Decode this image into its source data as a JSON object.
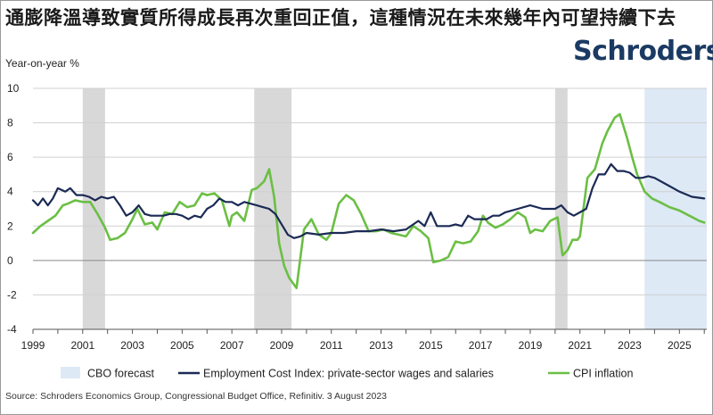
{
  "title": "通膨降溫導致實質所得成長再次重回正值，這種情況在未來幾年內可望持續下去",
  "logo": "Schroders",
  "source": "Source: Schroders Economics Group, Congressional Budget Office, Refinitiv. 3 August 2023",
  "colors": {
    "ect": "#1b2a55",
    "cpi": "#6bbf44",
    "forecast": "#dde9f5",
    "recession": "#d8d8d8",
    "grid": "#d0d0d0"
  },
  "chart_data": {
    "type": "line",
    "ylabel": "Year-on-year %",
    "ylim": [
      -4,
      10
    ],
    "yticks": [
      "-4",
      "-2",
      "0",
      "2",
      "4",
      "6",
      "8",
      "10"
    ],
    "xlim": [
      1999,
      2026.1
    ],
    "xticks": [
      "1999",
      "2001",
      "2003",
      "2005",
      "2007",
      "2009",
      "2011",
      "2013",
      "2015",
      "2017",
      "2019",
      "2021",
      "2023",
      "2025"
    ],
    "grid": "horizontal",
    "legend_position": "bottom",
    "shaded_recessions": [
      [
        2001.0,
        2001.9
      ],
      [
        2007.9,
        2009.4
      ],
      [
        2020.0,
        2020.5
      ]
    ],
    "forecast_region": [
      2023.6,
      2026.1
    ],
    "legend": [
      {
        "name": "CBO forecast",
        "kind": "area"
      },
      {
        "name": "Employment Cost Index: private-sector wages and salaries",
        "kind": "line",
        "series": 0
      },
      {
        "name": "CPI inflation",
        "kind": "line",
        "series": 1
      }
    ],
    "series": [
      {
        "name": "Employment Cost Index: private-sector wages and salaries",
        "x": [
          1999.0,
          1999.2,
          1999.4,
          1999.6,
          1999.8,
          2000.0,
          2000.3,
          2000.5,
          2000.75,
          2001.0,
          2001.25,
          2001.5,
          2001.75,
          2002.0,
          2002.25,
          2002.5,
          2002.75,
          2003.0,
          2003.25,
          2003.5,
          2003.75,
          2004.0,
          2004.25,
          2004.5,
          2004.75,
          2005.0,
          2005.25,
          2005.5,
          2005.75,
          2006.0,
          2006.25,
          2006.5,
          2006.75,
          2007.0,
          2007.25,
          2007.5,
          2007.75,
          2008.0,
          2008.25,
          2008.5,
          2008.75,
          2009.0,
          2009.25,
          2009.5,
          2009.75,
          2010.0,
          2010.5,
          2011.0,
          2011.5,
          2012.0,
          2012.5,
          2013.0,
          2013.5,
          2014.0,
          2014.5,
          2014.75,
          2015.0,
          2015.25,
          2015.5,
          2015.75,
          2016.0,
          2016.25,
          2016.5,
          2016.75,
          2017.0,
          2017.25,
          2017.5,
          2017.75,
          2018.0,
          2018.5,
          2019.0,
          2019.5,
          2020.0,
          2020.25,
          2020.5,
          2020.75,
          2021.0,
          2021.25,
          2021.5,
          2021.75,
          2022.0,
          2022.25,
          2022.5,
          2022.75,
          2023.0,
          2023.25,
          2023.5,
          2023.75,
          2024.0,
          2024.5,
          2025.0,
          2025.5,
          2026.0
        ],
        "values": [
          3.5,
          3.2,
          3.6,
          3.2,
          3.6,
          4.2,
          4.0,
          4.2,
          3.8,
          3.8,
          3.7,
          3.5,
          3.7,
          3.6,
          3.7,
          3.2,
          2.6,
          2.8,
          3.2,
          2.7,
          2.6,
          2.6,
          2.6,
          2.7,
          2.7,
          2.6,
          2.4,
          2.6,
          2.5,
          3.0,
          3.2,
          3.6,
          3.4,
          3.4,
          3.2,
          3.4,
          3.3,
          3.2,
          3.1,
          3.0,
          2.7,
          2.1,
          1.5,
          1.3,
          1.4,
          1.6,
          1.5,
          1.6,
          1.6,
          1.7,
          1.7,
          1.8,
          1.7,
          1.8,
          2.3,
          2.0,
          2.8,
          2.0,
          2.0,
          2.0,
          2.1,
          2.0,
          2.6,
          2.4,
          2.4,
          2.4,
          2.6,
          2.6,
          2.8,
          3.0,
          3.2,
          3.0,
          3.0,
          3.2,
          2.8,
          2.6,
          2.8,
          3.0,
          4.2,
          5.0,
          5.0,
          5.6,
          5.2,
          5.2,
          5.1,
          4.8,
          4.8,
          4.9,
          4.8,
          4.4,
          4.0,
          3.7,
          3.6
        ]
      },
      {
        "name": "CPI inflation",
        "x": [
          1999.0,
          1999.3,
          1999.6,
          1999.9,
          2000.2,
          2000.4,
          2000.7,
          2001.0,
          2001.3,
          2001.6,
          2001.9,
          2002.1,
          2002.4,
          2002.7,
          2003.0,
          2003.2,
          2003.5,
          2003.8,
          2004.0,
          2004.3,
          2004.6,
          2004.9,
          2005.2,
          2005.5,
          2005.8,
          2006.0,
          2006.3,
          2006.6,
          2006.9,
          2007.0,
          2007.2,
          2007.5,
          2007.8,
          2008.0,
          2008.3,
          2008.5,
          2008.7,
          2008.9,
          2009.1,
          2009.3,
          2009.6,
          2009.9,
          2010.2,
          2010.5,
          2010.8,
          2011.0,
          2011.3,
          2011.6,
          2011.9,
          2012.2,
          2012.5,
          2012.8,
          2013.1,
          2013.4,
          2013.7,
          2014.0,
          2014.3,
          2014.6,
          2014.9,
          2015.1,
          2015.4,
          2015.7,
          2016.0,
          2016.3,
          2016.6,
          2016.9,
          2017.1,
          2017.3,
          2017.6,
          2017.9,
          2018.2,
          2018.5,
          2018.8,
          2019.0,
          2019.2,
          2019.5,
          2019.8,
          2020.1,
          2020.3,
          2020.5,
          2020.7,
          2020.9,
          2021.0,
          2021.3,
          2021.6,
          2021.9,
          2022.1,
          2022.4,
          2022.6,
          2022.9,
          2023.1,
          2023.3,
          2023.6,
          2023.9,
          2024.2,
          2024.6,
          2025.0,
          2025.4,
          2025.8,
          2026.0
        ],
        "values": [
          1.6,
          2.0,
          2.3,
          2.6,
          3.2,
          3.3,
          3.5,
          3.4,
          3.4,
          2.7,
          1.9,
          1.2,
          1.3,
          1.6,
          2.4,
          3.0,
          2.1,
          2.2,
          1.8,
          2.8,
          2.7,
          3.4,
          3.1,
          3.2,
          3.9,
          3.8,
          3.9,
          3.5,
          2.0,
          2.6,
          2.8,
          2.3,
          4.1,
          4.2,
          4.6,
          5.3,
          3.7,
          1.0,
          -0.3,
          -1.0,
          -1.6,
          1.8,
          2.4,
          1.5,
          1.2,
          1.6,
          3.3,
          3.8,
          3.5,
          2.7,
          1.7,
          1.7,
          1.8,
          1.6,
          1.5,
          1.4,
          2.0,
          1.7,
          1.3,
          -0.1,
          0.0,
          0.2,
          1.1,
          1.0,
          1.1,
          1.7,
          2.6,
          2.2,
          1.9,
          2.1,
          2.4,
          2.8,
          2.5,
          1.6,
          1.8,
          1.7,
          2.3,
          2.5,
          0.3,
          0.6,
          1.2,
          1.2,
          1.4,
          4.8,
          5.3,
          6.8,
          7.5,
          8.3,
          8.5,
          7.1,
          6.0,
          5.0,
          4.0,
          3.6,
          3.4,
          3.1,
          2.9,
          2.6,
          2.3,
          2.2
        ]
      }
    ]
  }
}
